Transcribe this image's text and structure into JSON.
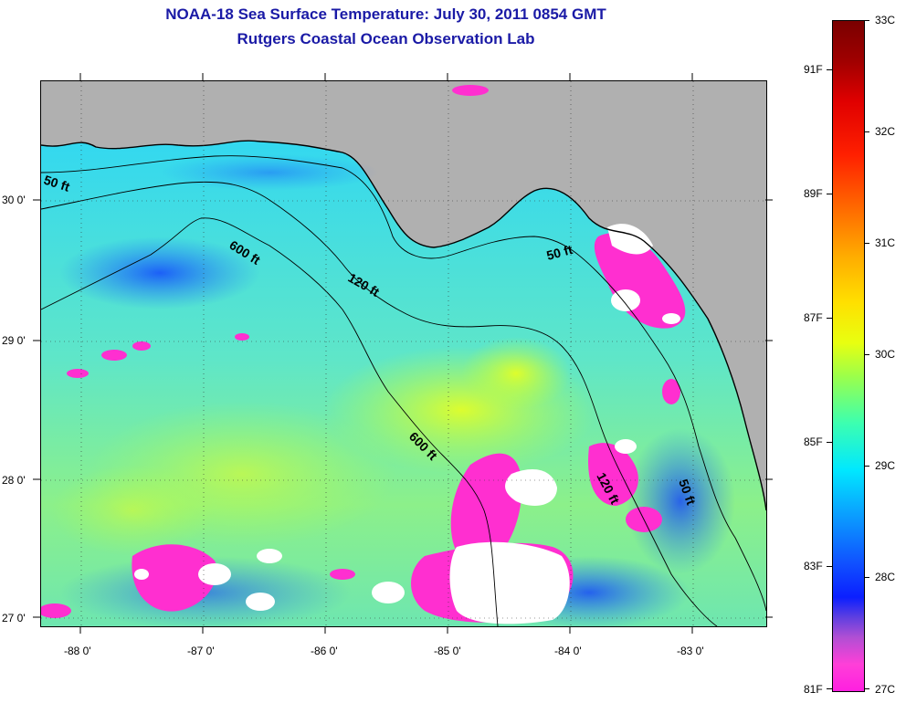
{
  "title": "NOAA-18 Sea Surface Temperature:  July 30, 2011 0854 GMT",
  "subtitle": "Rutgers Coastal Ocean Observation Lab",
  "lat_labels": [
    "30 0'",
    "29 0'",
    "28 0'",
    "27 0'"
  ],
  "lon_labels": [
    "-88 0'",
    "-87 0'",
    "-86 0'",
    "-85 0'",
    "-84 0'",
    "-83 0'"
  ],
  "isobath_labels": [
    "50 ft",
    "600 ft",
    "120 ft",
    "50 ft",
    "600 ft",
    "120 ft",
    "50 ft"
  ],
  "colorbar": {
    "celsius_labels": [
      "33C",
      "32C",
      "31C",
      "30C",
      "29C",
      "28C",
      "27C"
    ],
    "fahrenheit_labels": [
      "91F",
      "89F",
      "87F",
      "85F",
      "83F",
      "81F"
    ]
  },
  "colors": {
    "land": "#b0b0b0",
    "water_base": "#3ad8e8",
    "cold_anomaly": "#ff2fd0",
    "cloud": "#ffffff",
    "title": "#1a1aa6"
  }
}
